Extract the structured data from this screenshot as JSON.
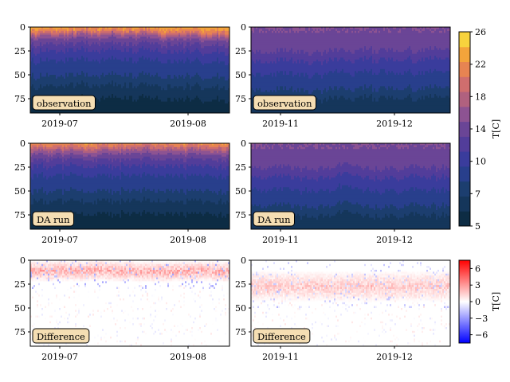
{
  "chart_data": [
    {
      "type": "heatmap",
      "panel": "top-left",
      "label": "observation",
      "colormap": "temperature",
      "x_ticks": [
        "2019-07",
        "2019-08"
      ],
      "y_ticks": [
        "0",
        "25",
        "50",
        "75"
      ],
      "ylim": [
        90,
        0
      ],
      "profile": [
        {
          "depth": 0,
          "value": 25
        },
        {
          "depth": 5,
          "value": 22
        },
        {
          "depth": 10,
          "value": 17
        },
        {
          "depth": 20,
          "value": 13
        },
        {
          "depth": 35,
          "value": 10
        },
        {
          "depth": 55,
          "value": 7.5
        },
        {
          "depth": 75,
          "value": 6
        },
        {
          "depth": 90,
          "value": 5.5
        }
      ]
    },
    {
      "type": "heatmap",
      "panel": "top-right",
      "label": "observation",
      "colormap": "temperature",
      "x_ticks": [
        "2019-11",
        "2019-12"
      ],
      "y_ticks": [
        "0",
        "25",
        "50",
        "75"
      ],
      "ylim": [
        90,
        0
      ],
      "profile": [
        {
          "depth": 0,
          "value": 16
        },
        {
          "depth": 20,
          "value": 15
        },
        {
          "depth": 35,
          "value": 12
        },
        {
          "depth": 55,
          "value": 9
        },
        {
          "depth": 75,
          "value": 7
        },
        {
          "depth": 90,
          "value": 6
        }
      ]
    },
    {
      "type": "heatmap",
      "panel": "middle-left",
      "label": "DA run",
      "colormap": "temperature",
      "x_ticks": [
        "2019-07",
        "2019-08"
      ],
      "y_ticks": [
        "0",
        "25",
        "50",
        "75"
      ],
      "ylim": [
        90,
        0
      ],
      "profile": [
        {
          "depth": 0,
          "value": 24
        },
        {
          "depth": 5,
          "value": 21
        },
        {
          "depth": 10,
          "value": 17
        },
        {
          "depth": 20,
          "value": 13
        },
        {
          "depth": 35,
          "value": 10
        },
        {
          "depth": 55,
          "value": 7.5
        },
        {
          "depth": 75,
          "value": 6
        },
        {
          "depth": 90,
          "value": 5.5
        }
      ]
    },
    {
      "type": "heatmap",
      "panel": "middle-right",
      "label": "DA run",
      "colormap": "temperature",
      "x_ticks": [
        "2019-11",
        "2019-12"
      ],
      "y_ticks": [
        "0",
        "25",
        "50",
        "75"
      ],
      "ylim": [
        90,
        0
      ],
      "profile": [
        {
          "depth": 0,
          "value": 16
        },
        {
          "depth": 20,
          "value": 15
        },
        {
          "depth": 35,
          "value": 12
        },
        {
          "depth": 55,
          "value": 9
        },
        {
          "depth": 75,
          "value": 7
        },
        {
          "depth": 90,
          "value": 6
        }
      ]
    },
    {
      "type": "heatmap",
      "panel": "bottom-left",
      "label": "Difference",
      "colormap": "difference",
      "x_ticks": [
        "2019-07",
        "2019-08"
      ],
      "y_ticks": [
        "0",
        "25",
        "50",
        "75"
      ],
      "ylim": [
        90,
        0
      ],
      "anomaly_band": {
        "depth": [
          3,
          20
        ],
        "peak": 3
      }
    },
    {
      "type": "heatmap",
      "panel": "bottom-right",
      "label": "Difference",
      "colormap": "difference",
      "x_ticks": [
        "2019-11",
        "2019-12"
      ],
      "y_ticks": [
        "0",
        "25",
        "50",
        "75"
      ],
      "ylim": [
        90,
        0
      ],
      "anomaly_band": {
        "depth": [
          15,
          40
        ],
        "peak": 2
      }
    }
  ],
  "colorbars": {
    "temperature": {
      "label": "T[C]",
      "ticks": [
        "26",
        "22",
        "18",
        "14",
        "10",
        "7",
        "5"
      ],
      "levels": [
        5,
        6,
        7,
        8,
        10,
        12,
        14,
        16,
        18,
        20,
        22,
        24,
        26
      ],
      "colors": [
        "#0d2c44",
        "#15365b",
        "#1c3e6f",
        "#283f8c",
        "#3a3c9c",
        "#523d9a",
        "#6a4596",
        "#8d5392",
        "#b0617f",
        "#cf6e6e",
        "#e78452",
        "#f3a43b",
        "#f7d33d"
      ]
    },
    "difference": {
      "label": "T[C]",
      "ticks": [
        "6",
        "3",
        "0",
        "−3",
        "−6"
      ],
      "vmin": -7.5,
      "vmax": 7.5
    }
  }
}
